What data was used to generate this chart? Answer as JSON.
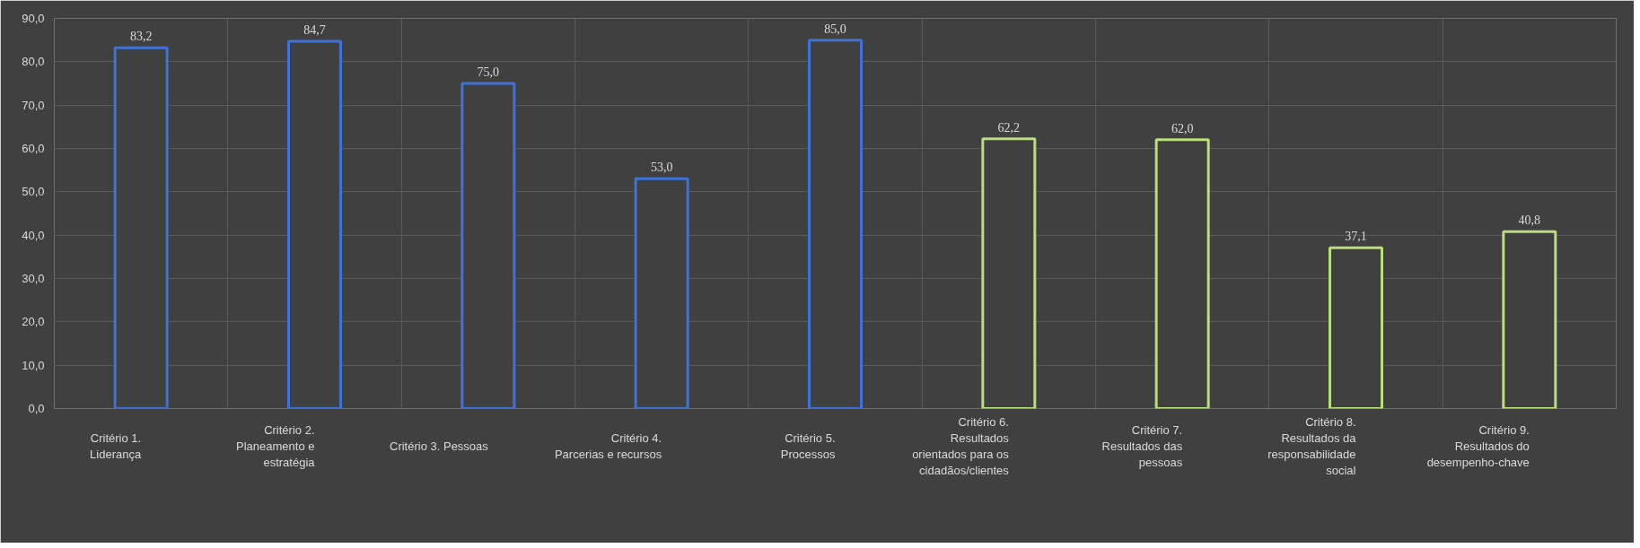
{
  "chart_data": {
    "type": "bar",
    "categories": [
      "Critério 1. Liderança",
      "Critério 2. Planeamento e estratégia",
      "Critério 3. Pessoas",
      "Critério 4. Parcerias e recursos",
      "Critério 5. Processos",
      "Critério 6. Resultados orientados para os cidadãos/clientes",
      "Critério 7. Resultados das pessoas",
      "Critério 8. Resultados da responsabilidade social",
      "Critério 9. Resultados do desempenho-chave"
    ],
    "values": [
      83.2,
      84.7,
      75.0,
      53.0,
      85.0,
      62.2,
      62.0,
      37.1,
      40.8
    ],
    "value_labels": [
      "83,2",
      "84,7",
      "75,0",
      "53,0",
      "85,0",
      "62,2",
      "62,0",
      "37,1",
      "40,8"
    ],
    "colors": [
      "#3f72d6",
      "#3f72d6",
      "#3f72d6",
      "#3f72d6",
      "#3f72d6",
      "#b8e07a",
      "#b8e07a",
      "#b8e07a",
      "#b8e07a"
    ],
    "ylim": [
      0,
      90
    ],
    "yticks": [
      {
        "value": 0,
        "label": "0,0"
      },
      {
        "value": 10,
        "label": "10,0"
      },
      {
        "value": 20,
        "label": "20,0"
      },
      {
        "value": 30,
        "label": "30,0"
      },
      {
        "value": 40,
        "label": "40,0"
      },
      {
        "value": 50,
        "label": "50,0"
      },
      {
        "value": 60,
        "label": "60,0"
      },
      {
        "value": 70,
        "label": "70,0"
      },
      {
        "value": 80,
        "label": "80,0"
      },
      {
        "value": 90,
        "label": "90,0"
      }
    ],
    "grid": true
  }
}
